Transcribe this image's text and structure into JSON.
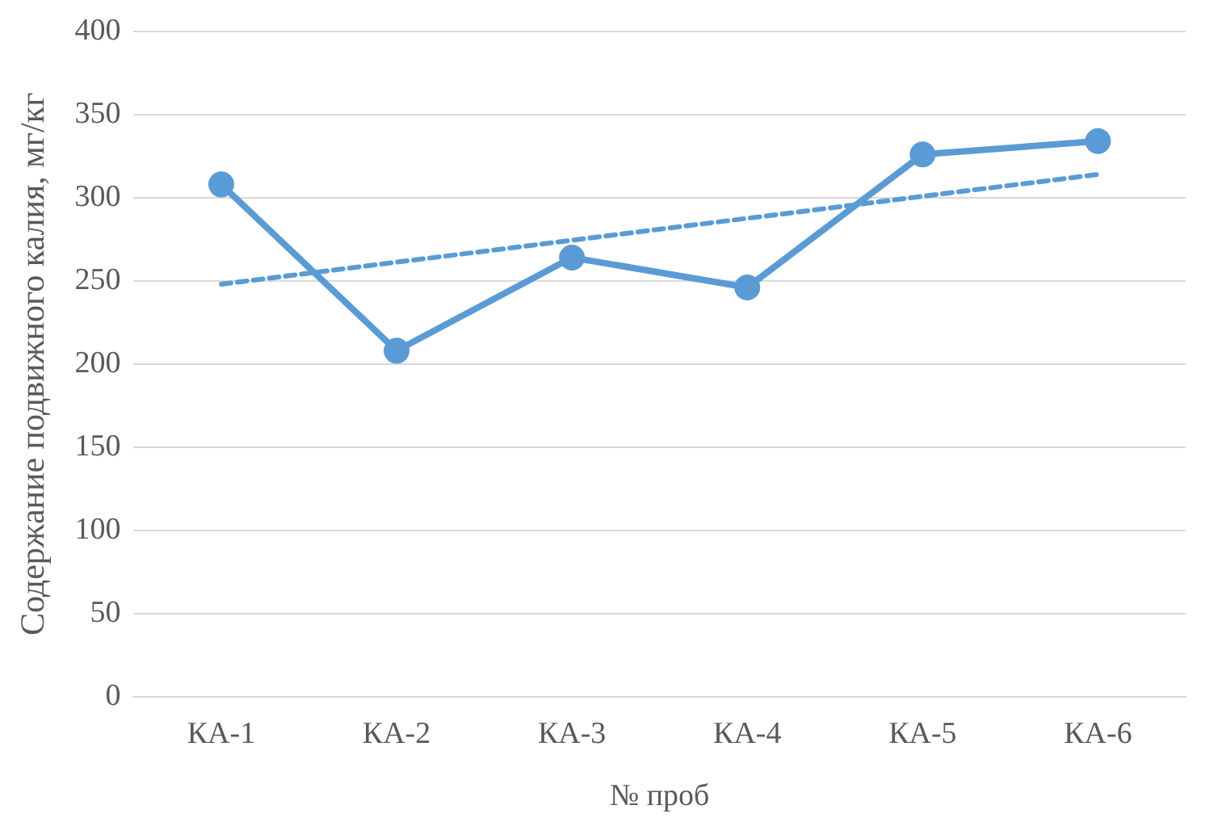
{
  "chart_data": {
    "type": "line",
    "xlabel": "№ проб",
    "ylabel": "Содержание подвижного калия, мг/кг",
    "categories": [
      "КА-1",
      "КА-2",
      "КА-3",
      "КА-4",
      "КА-5",
      "КА-6"
    ],
    "series": [
      {
        "color": "#5b9bd5",
        "values": [
          308,
          208,
          264,
          246,
          326,
          334
        ],
        "marker": "circle",
        "line_style": "solid"
      },
      {
        "type": "line",
        "color": "#5b9bd5",
        "x": [
          "КА-1",
          "КА-6"
        ],
        "values": [
          248,
          314
        ],
        "marker": "none",
        "line_style": "dashed"
      }
    ],
    "ylim": [
      0,
      400
    ],
    "yticks": [
      0,
      50,
      100,
      150,
      200,
      250,
      300,
      350,
      400
    ],
    "grid": "y",
    "legend": false
  }
}
